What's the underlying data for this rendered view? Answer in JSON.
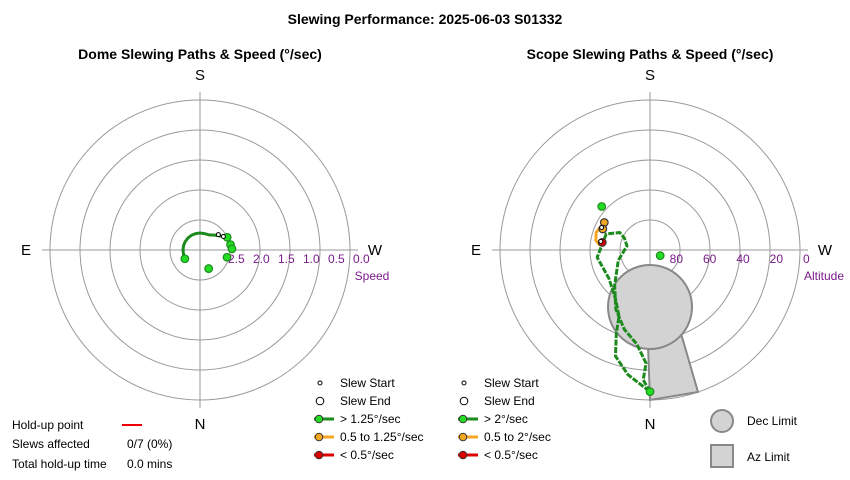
{
  "title": "Slewing Performance: 2025-06-03 S01332",
  "colors": {
    "fast": "#1d8a1d",
    "fast_marker": "#22dd22",
    "medium": "#f5a623",
    "slow": "#dd0000",
    "hold_up": "#ee0000",
    "grid": "#999999",
    "axis_label": "#7a1a8a",
    "limit_fill": "#d3d3d3",
    "limit_stroke": "#888888"
  },
  "chart_data": [
    {
      "type": "scatter",
      "name": "dome",
      "title": "Dome Slewing Paths & Speed (°/sec)",
      "projection": "polar",
      "directions": {
        "top": "S",
        "left": "E",
        "right": "W",
        "bottom": "N"
      },
      "radial_label": "Speed",
      "radial_ticks": [
        "2.5",
        "2.0",
        "1.5",
        "1.0",
        "0.5",
        "0.0"
      ],
      "radial_tick_values": [
        2.5,
        2.0,
        1.5,
        1.0,
        0.5,
        0.0
      ],
      "radial_range": [
        0,
        3.0
      ],
      "radial_inverted": true,
      "grid": true,
      "path_points": [
        {
          "az": 60,
          "speed": 2.65
        },
        {
          "az": 75,
          "speed": 2.66
        },
        {
          "az": 90,
          "speed": 2.66
        },
        {
          "az": 105,
          "speed": 2.66
        },
        {
          "az": 120,
          "speed": 2.66
        },
        {
          "az": 135,
          "speed": 2.66
        },
        {
          "az": 150,
          "speed": 2.66
        },
        {
          "az": 165,
          "speed": 2.66
        },
        {
          "az": 180,
          "speed": 2.66
        },
        {
          "az": 195,
          "speed": 2.66
        },
        {
          "az": 210,
          "speed": 2.65
        },
        {
          "az": 225,
          "speed": 2.58
        },
        {
          "az": 240,
          "speed": 2.46
        },
        {
          "az": 250,
          "speed": 2.4
        },
        {
          "az": 260,
          "speed": 2.38
        }
      ],
      "starts": [
        {
          "az": 240,
          "speed": 2.46
        },
        {
          "az": 230,
          "speed": 2.52
        }
      ],
      "ends": [
        {
          "az": 60,
          "speed": 2.65
        },
        {
          "az": 245,
          "speed": 2.4
        },
        {
          "az": 260,
          "speed": 2.38
        },
        {
          "az": 268,
          "speed": 2.36
        },
        {
          "az": 285,
          "speed": 2.44
        },
        {
          "az": 335,
          "speed": 2.59
        }
      ],
      "legend": [
        {
          "label": "Slew Start",
          "kind": "start"
        },
        {
          "label": "Slew End",
          "kind": "end"
        },
        {
          "label": "> 1.25°/sec",
          "kind": "fast"
        },
        {
          "label": "0.5 to 1.25°/sec",
          "kind": "medium"
        },
        {
          "label": "< 0.5°/sec",
          "kind": "slow"
        }
      ]
    },
    {
      "type": "scatter",
      "name": "scope",
      "title": "Scope Slewing Paths & Speed (°/sec)",
      "projection": "polar",
      "directions": {
        "top": "S",
        "left": "E",
        "right": "W",
        "bottom": "N"
      },
      "radial_label": "Altitude",
      "radial_ticks": [
        "80",
        "60",
        "40",
        "20",
        "0"
      ],
      "radial_tick_values": [
        80,
        60,
        40,
        20,
        0
      ],
      "radial_range": [
        0,
        90
      ],
      "radial_inverted": true,
      "grid": true,
      "fast_path": [
        {
          "az": 0,
          "alt": 5
        },
        {
          "az": 3,
          "alt": 12
        },
        {
          "az": 2,
          "alt": 22
        },
        {
          "az": 8,
          "alt": 33
        },
        {
          "az": 18,
          "alt": 40
        },
        {
          "az": 30,
          "alt": 49
        },
        {
          "az": 45,
          "alt": 60
        },
        {
          "az": 72,
          "alt": 70
        },
        {
          "az": 100,
          "alt": 76
        },
        {
          "az": 115,
          "alt": 73
        },
        {
          "az": 120,
          "alt": 69
        },
        {
          "az": 110,
          "alt": 62
        },
        {
          "az": 82,
          "alt": 58
        },
        {
          "az": 55,
          "alt": 60
        },
        {
          "az": 35,
          "alt": 54
        },
        {
          "az": 25,
          "alt": 46
        },
        {
          "az": 22,
          "alt": 36
        },
        {
          "az": 18,
          "alt": 23
        },
        {
          "az": 10,
          "alt": 14
        },
        {
          "az": 0,
          "alt": 5
        }
      ],
      "medium_path": [
        {
          "az": 121,
          "alt": 58
        },
        {
          "az": 108,
          "alt": 56
        },
        {
          "az": 100,
          "alt": 57
        },
        {
          "az": 95,
          "alt": 60
        }
      ],
      "starts": [
        {
          "az": 115,
          "alt": 58
        },
        {
          "az": 100,
          "alt": 60
        }
      ],
      "ends": [
        {
          "az": 0,
          "alt": 5
        },
        {
          "az": 299,
          "alt": 83
        },
        {
          "az": 121,
          "alt": 58
        },
        {
          "az": 114,
          "alt": 59
        },
        {
          "az": 99,
          "alt": 61
        },
        {
          "az": 132,
          "alt": 51
        }
      ],
      "end_colors": [
        "fast",
        "fast",
        "medium",
        "medium",
        "slow",
        "fast"
      ],
      "legend": [
        {
          "label": "Slew Start",
          "kind": "start"
        },
        {
          "label": "Slew End",
          "kind": "end"
        },
        {
          "label": "> 2°/sec",
          "kind": "fast"
        },
        {
          "label": "0.5 to 2°/sec",
          "kind": "medium"
        },
        {
          "label": "< 0.5°/sec",
          "kind": "slow"
        }
      ],
      "limits_legend": [
        {
          "label": "Dec Limit",
          "kind": "circle"
        },
        {
          "label": "Az Limit",
          "kind": "square"
        }
      ]
    }
  ],
  "hold_up": {
    "point_label": "Hold-up point",
    "slews_affected_label": "Slews affected",
    "slews_affected_value": "0/7 (0%)",
    "total_label": "Total hold-up time",
    "total_value": "0.0 mins"
  }
}
